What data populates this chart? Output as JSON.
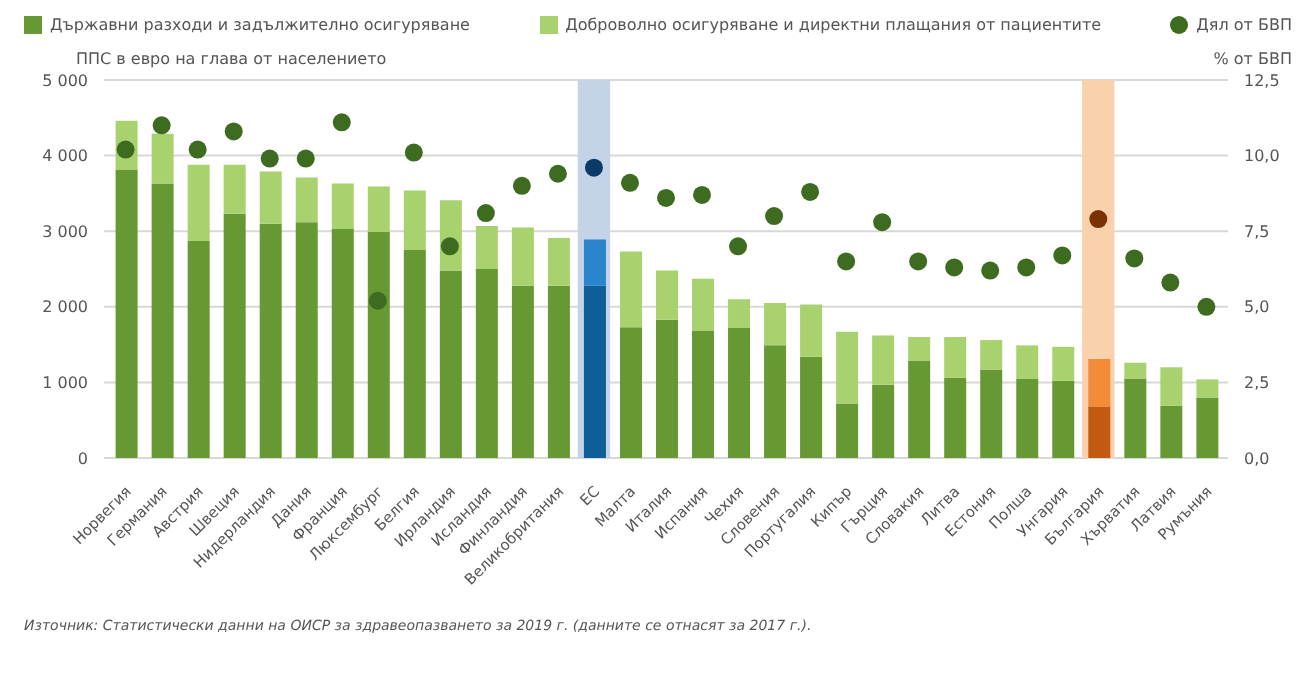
{
  "chart_data": {
    "type": "bar",
    "stacked": true,
    "categories": [
      "Норвегия",
      "Германия",
      "Австрия",
      "Швеция",
      "Нидерландия",
      "Дания",
      "Франция",
      "Люксембург",
      "Белгия",
      "Ирландия",
      "Исландия",
      "Финландия",
      "Великобритания",
      "ЕС",
      "Малта",
      "Италия",
      "Испания",
      "Чехия",
      "Словения",
      "Португалия",
      "Кипър",
      "Гърция",
      "Словакия",
      "Литва",
      "Естония",
      "Полша",
      "Унгария",
      "България",
      "Хърватия",
      "Латвия",
      "Румъния"
    ],
    "series": [
      {
        "name": "Държавни разходи и задължително осигуряване",
        "color": "#669933",
        "colors": [
          "#669933",
          "#669933",
          "#669933",
          "#669933",
          "#669933",
          "#669933",
          "#669933",
          "#669933",
          "#669933",
          "#669933",
          "#669933",
          "#669933",
          "#669933",
          "#0e5f99",
          "#669933",
          "#669933",
          "#669933",
          "#669933",
          "#669933",
          "#669933",
          "#669933",
          "#669933",
          "#669933",
          "#669933",
          "#669933",
          "#669933",
          "#669933",
          "#c35a12",
          "#669933",
          "#669933",
          "#669933"
        ],
        "values": [
          3810,
          3630,
          2870,
          3230,
          3100,
          3120,
          3030,
          2990,
          2750,
          2480,
          2500,
          2280,
          2280,
          2280,
          1730,
          1830,
          1680,
          1720,
          1490,
          1340,
          720,
          970,
          1290,
          1060,
          1170,
          1050,
          1020,
          680,
          1050,
          690,
          800
        ]
      },
      {
        "name": "Доброволно осигуряване и директни плащания от пациентите",
        "color": "#a8d26e",
        "colors": [
          "#a8d26e",
          "#a8d26e",
          "#a8d26e",
          "#a8d26e",
          "#a8d26e",
          "#a8d26e",
          "#a8d26e",
          "#a8d26e",
          "#a8d26e",
          "#a8d26e",
          "#a8d26e",
          "#a8d26e",
          "#a8d26e",
          "#2b85cc",
          "#a8d26e",
          "#a8d26e",
          "#a8d26e",
          "#a8d26e",
          "#a8d26e",
          "#a8d26e",
          "#a8d26e",
          "#a8d26e",
          "#a8d26e",
          "#a8d26e",
          "#a8d26e",
          "#a8d26e",
          "#a8d26e",
          "#f28c38",
          "#a8d26e",
          "#a8d26e",
          "#a8d26e"
        ],
        "values": [
          650,
          660,
          1010,
          650,
          690,
          590,
          600,
          600,
          790,
          930,
          570,
          770,
          630,
          610,
          1000,
          650,
          690,
          380,
          560,
          690,
          950,
          650,
          310,
          540,
          390,
          440,
          450,
          630,
          210,
          510,
          240
        ]
      },
      {
        "name": "Дял от БВП",
        "type": "scatter",
        "axis": "y2",
        "marker": "circle",
        "color": "#3d6b1f",
        "colors": [
          "#3d6b1f",
          "#3d6b1f",
          "#3d6b1f",
          "#3d6b1f",
          "#3d6b1f",
          "#3d6b1f",
          "#3d6b1f",
          "#3d6b1f",
          "#3d6b1f",
          "#3d6b1f",
          "#3d6b1f",
          "#3d6b1f",
          "#3d6b1f",
          "#0a3a66",
          "#3d6b1f",
          "#3d6b1f",
          "#3d6b1f",
          "#3d6b1f",
          "#3d6b1f",
          "#3d6b1f",
          "#3d6b1f",
          "#3d6b1f",
          "#3d6b1f",
          "#3d6b1f",
          "#3d6b1f",
          "#3d6b1f",
          "#3d6b1f",
          "#7a3300",
          "#3d6b1f",
          "#3d6b1f",
          "#3d6b1f"
        ],
        "values": [
          10.2,
          11.0,
          10.2,
          10.8,
          9.9,
          9.9,
          11.1,
          5.2,
          10.1,
          7.0,
          8.1,
          9.0,
          9.4,
          9.6,
          9.1,
          8.6,
          8.7,
          7.0,
          8.0,
          8.8,
          6.5,
          7.8,
          6.5,
          6.3,
          6.2,
          6.3,
          6.7,
          7.9,
          6.6,
          5.8,
          5.0
        ]
      }
    ],
    "ylabel": "ППС в евро на глава от населението",
    "y2label": "% от БВП",
    "ylim": [
      0,
      5000
    ],
    "yticks": [
      0,
      {
        "value": 1000,
        "label": "1 000"
      },
      {
        "value": 2000,
        "label": "2 000"
      },
      {
        "value": 3000,
        "label": "3 000"
      },
      {
        "value": 4000,
        "label": "4 000"
      },
      {
        "value": 5000,
        "label": "5 000"
      }
    ],
    "y2lim": [
      0,
      12.5
    ],
    "y2ticks": [
      {
        "value": 0,
        "label": "0,0"
      },
      {
        "value": 2.5,
        "label": "2,5"
      },
      {
        "value": 5,
        "label": "5,0"
      },
      {
        "value": 7.5,
        "label": "7,5"
      },
      {
        "value": 10,
        "label": "10,0"
      },
      {
        "value": 12.5,
        "label": "12,5"
      }
    ],
    "bands": [
      {
        "axis": "x",
        "from": "ЕС",
        "to": "ЕС",
        "color": "#c5d3e8"
      },
      {
        "axis": "x",
        "from": "България",
        "to": "България",
        "color": "#fbd0ad"
      }
    ],
    "grid": "y",
    "legend": "top",
    "annotations": [
      "Източник: Статистически данни на ОИСР за здравеопазването за 2019 г. (данните се отнасят за 2017 г.)."
    ]
  }
}
